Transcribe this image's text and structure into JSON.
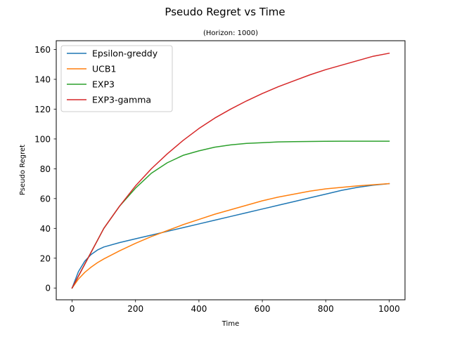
{
  "chart_data": {
    "type": "line",
    "title": "Pseudo Regret vs Time",
    "subtitle": "(Horizon: 1000)",
    "xlabel": "Time",
    "ylabel": "Pseudo Regret",
    "xlim": [
      -50,
      1050
    ],
    "ylim": [
      -7.9,
      165.9
    ],
    "xticks": [
      0,
      200,
      400,
      600,
      800,
      1000
    ],
    "yticks": [
      0,
      20,
      40,
      60,
      80,
      100,
      120,
      140,
      160
    ],
    "grid": false,
    "legend_position": "top-left",
    "x": [
      0,
      20,
      40,
      60,
      80,
      100,
      150,
      200,
      250,
      300,
      350,
      400,
      450,
      500,
      550,
      600,
      650,
      700,
      750,
      800,
      850,
      900,
      950,
      1000
    ],
    "series": [
      {
        "name": "Epsilon-greddy",
        "color": "#1f77b4",
        "values": [
          0,
          11,
          18,
          22.5,
          25.5,
          27.5,
          30.5,
          33,
          35.5,
          38,
          40.5,
          43,
          45.5,
          48,
          50.5,
          53,
          55.5,
          58,
          60.5,
          63,
          65.5,
          67.5,
          69,
          70
        ]
      },
      {
        "name": "UCB1",
        "color": "#ff7f0e",
        "values": [
          0,
          6,
          10.5,
          14,
          17,
          19.5,
          25,
          30,
          34.5,
          38.5,
          42.5,
          46,
          49.5,
          52.5,
          55.5,
          58.5,
          61,
          63,
          65,
          66.5,
          67.5,
          68.5,
          69.3,
          70
        ]
      },
      {
        "name": "EXP3",
        "color": "#2ca02c",
        "values": [
          0,
          8,
          16,
          24,
          32,
          40,
          55,
          67,
          77,
          84,
          89,
          92,
          94.5,
          96,
          97,
          97.5,
          98,
          98.2,
          98.3,
          98.4,
          98.5,
          98.5,
          98.5,
          98.5
        ]
      },
      {
        "name": "EXP3-gamma",
        "color": "#d62728",
        "values": [
          0,
          8,
          16,
          24,
          32,
          40,
          55,
          68.5,
          80,
          90,
          99,
          107,
          114,
          120,
          125.5,
          130.5,
          135,
          139,
          143,
          146.5,
          149.5,
          152.5,
          155.5,
          157.5
        ]
      }
    ]
  }
}
